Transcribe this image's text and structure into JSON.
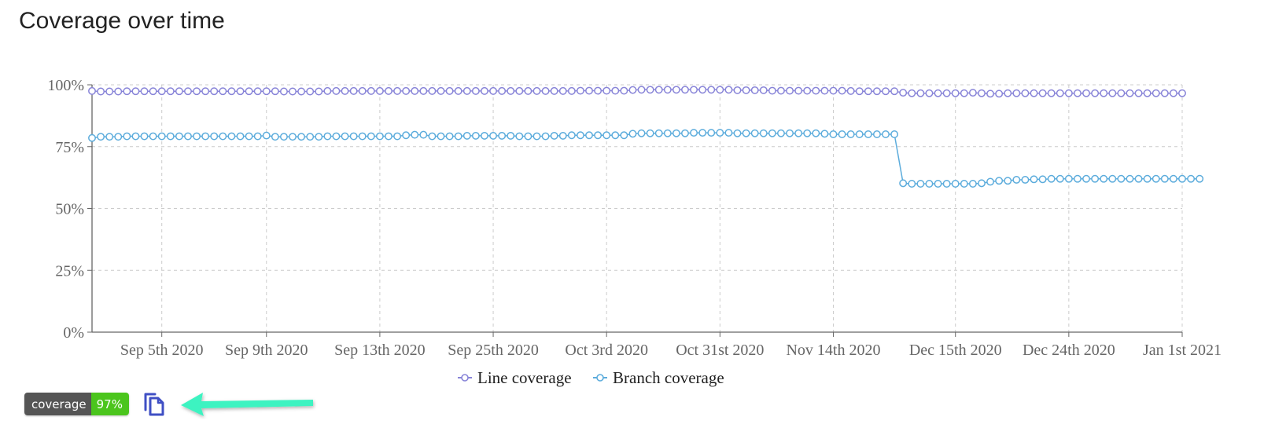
{
  "chart_data": {
    "type": "line",
    "title": "Coverage over time",
    "y_ticks": [
      "0%",
      "25%",
      "50%",
      "75%",
      "100%"
    ],
    "ylim": [
      0,
      100
    ],
    "x_ticks": [
      {
        "index": 8,
        "label": "Sep 5th 2020"
      },
      {
        "index": 20,
        "label": "Sep 9th 2020"
      },
      {
        "index": 33,
        "label": "Sep 13th 2020"
      },
      {
        "index": 46,
        "label": "Sep 25th 2020"
      },
      {
        "index": 59,
        "label": "Oct 3rd 2020"
      },
      {
        "index": 72,
        "label": "Oct 31st 2020"
      },
      {
        "index": 85,
        "label": "Nov 14th 2020"
      },
      {
        "index": 99,
        "label": "Dec 15th 2020"
      },
      {
        "index": 112,
        "label": "Dec 24th 2020"
      },
      {
        "index": 125,
        "label": "Jan 1st 2021"
      }
    ],
    "grid": true,
    "legend_position": "bottom",
    "series": [
      {
        "name": "Line coverage",
        "color": "#8884d8",
        "values": [
          97.5,
          97.3,
          97.3,
          97.3,
          97.4,
          97.4,
          97.4,
          97.4,
          97.4,
          97.4,
          97.4,
          97.4,
          97.4,
          97.4,
          97.4,
          97.4,
          97.4,
          97.4,
          97.4,
          97.4,
          97.4,
          97.4,
          97.3,
          97.3,
          97.3,
          97.3,
          97.3,
          97.5,
          97.5,
          97.5,
          97.5,
          97.5,
          97.5,
          97.5,
          97.5,
          97.5,
          97.5,
          97.5,
          97.5,
          97.5,
          97.5,
          97.5,
          97.5,
          97.5,
          97.5,
          97.5,
          97.5,
          97.5,
          97.5,
          97.5,
          97.5,
          97.5,
          97.5,
          97.5,
          97.5,
          97.5,
          97.6,
          97.6,
          97.6,
          97.6,
          97.6,
          97.6,
          97.9,
          98.0,
          98.0,
          98.0,
          98.0,
          98.0,
          98.0,
          98.0,
          98.0,
          98.0,
          98.0,
          98.0,
          97.8,
          97.8,
          97.8,
          97.8,
          97.6,
          97.6,
          97.6,
          97.6,
          97.6,
          97.6,
          97.6,
          97.6,
          97.6,
          97.5,
          97.4,
          97.4,
          97.4,
          97.4,
          97.4,
          96.8,
          96.6,
          96.6,
          96.6,
          96.6,
          96.6,
          96.6,
          96.6,
          96.8,
          96.6,
          96.4,
          96.4,
          96.6,
          96.6,
          96.6,
          96.6,
          96.6,
          96.6,
          96.6,
          96.6,
          96.6,
          96.6,
          96.6,
          96.6,
          96.6,
          96.6,
          96.6,
          96.6,
          96.6,
          96.6,
          96.6,
          96.6,
          96.6
        ]
      },
      {
        "name": "Branch coverage",
        "color": "#5cacdc",
        "values": [
          78.5,
          79.0,
          79.0,
          79.0,
          79.2,
          79.2,
          79.2,
          79.2,
          79.2,
          79.2,
          79.2,
          79.2,
          79.2,
          79.2,
          79.2,
          79.2,
          79.2,
          79.2,
          79.2,
          79.2,
          79.5,
          79.0,
          79.0,
          79.0,
          79.0,
          79.0,
          79.0,
          79.2,
          79.2,
          79.2,
          79.2,
          79.2,
          79.2,
          79.2,
          79.2,
          79.2,
          79.6,
          79.8,
          79.8,
          79.2,
          79.2,
          79.2,
          79.2,
          79.4,
          79.4,
          79.4,
          79.4,
          79.4,
          79.4,
          79.2,
          79.2,
          79.2,
          79.2,
          79.4,
          79.4,
          79.6,
          79.6,
          79.6,
          79.6,
          79.6,
          79.6,
          79.6,
          80.2,
          80.4,
          80.4,
          80.4,
          80.4,
          80.4,
          80.4,
          80.6,
          80.6,
          80.6,
          80.6,
          80.6,
          80.4,
          80.4,
          80.4,
          80.4,
          80.4,
          80.4,
          80.4,
          80.4,
          80.4,
          80.4,
          80.2,
          80.0,
          80.0,
          80.0,
          80.0,
          80.0,
          80.0,
          80.0,
          80.0,
          60.2,
          60.0,
          60.0,
          60.0,
          60.0,
          60.0,
          60.0,
          60.0,
          60.0,
          60.2,
          60.8,
          61.2,
          61.2,
          61.6,
          61.6,
          61.8,
          61.8,
          62.0,
          62.0,
          62.0,
          62.0,
          62.0,
          62.0,
          62.0,
          62.0,
          62.0,
          62.0,
          62.0,
          62.0,
          62.0,
          62.0,
          62.0,
          62.0,
          62.0,
          62.0
        ]
      }
    ]
  },
  "badge": {
    "label": "coverage",
    "value": "97%",
    "value_color": "#4bc51d"
  },
  "copy_icon": "copy-icon",
  "arrow_icon": "arrow-left-icon",
  "arrow_color": "#3ef3c1"
}
